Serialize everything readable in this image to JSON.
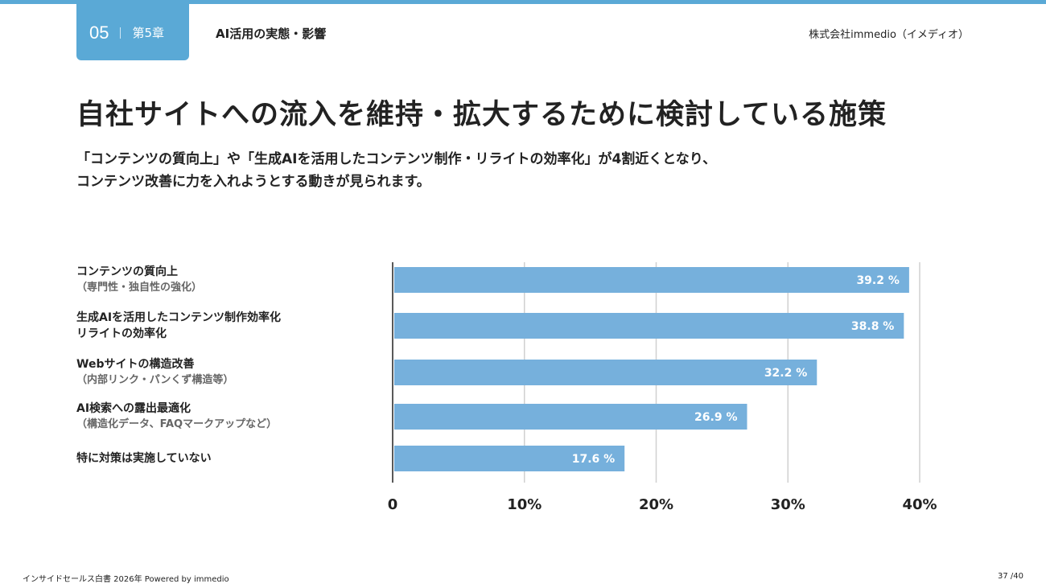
{
  "header": {
    "chapter_number": "05",
    "chapter_label": "第5章",
    "section_title": "AI活用の実態・影響",
    "company": "株式会社immedio（イメディオ）"
  },
  "title": "自社サイトへの流入を維持・拡大するために検討している施策",
  "subtitle": [
    "「コンテンツの質向上」や「生成AIを活用したコンテンツ制作・リライトの効率化」が4割近くとなり、",
    "コンテンツ改善に力を入れようとする動きが見られます。"
  ],
  "chart_data": {
    "type": "bar",
    "orientation": "horizontal",
    "categories": [
      {
        "line1": "コンテンツの質向上",
        "line2": "（専門性・独自性の強化）",
        "sub": true
      },
      {
        "line1": "生成AIを活用したコンテンツ制作効率化",
        "line2": "リライトの効率化",
        "sub": false
      },
      {
        "line1": "Webサイトの構造改善",
        "line2": "（内部リンク・パンくず構造等）",
        "sub": true
      },
      {
        "line1": "AI検索への露出最適化",
        "line2": "（構造化データ、FAQマークアップなど）",
        "sub": true
      },
      {
        "line1": "特に対策は実施していない",
        "line2": "",
        "sub": false
      }
    ],
    "values": [
      39.2,
      38.8,
      32.2,
      26.9,
      17.6
    ],
    "value_labels": [
      "39.2 %",
      "38.8 %",
      "32.2 %",
      "26.9 %",
      "17.6 %"
    ],
    "xlim": [
      0,
      40
    ],
    "xticks": [
      "0",
      "10%",
      "20%",
      "30%",
      "40%"
    ],
    "grid": true,
    "bar_color": "#76b0dc"
  },
  "footer": {
    "left": "インサイドセールス白書 2026年 Powered by immedio",
    "page": "37 /40"
  }
}
